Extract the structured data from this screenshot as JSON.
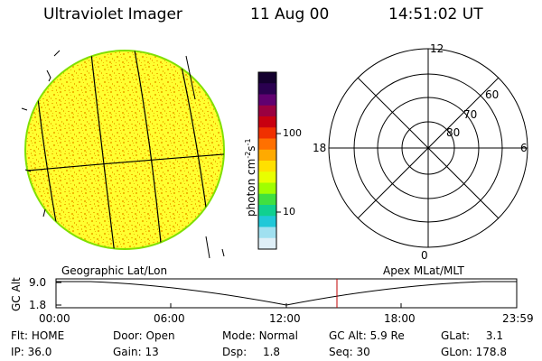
{
  "header": {
    "title": "Ultraviolet Imager",
    "date": "11 Aug 00",
    "time": "14:51:02 UT"
  },
  "colorbar": {
    "unit": "photon cm",
    "unit_exp1": "-2",
    "unit_s": "s",
    "unit_exp2": "-1",
    "ticks": [
      "100",
      "10"
    ],
    "colors_top_to_bottom": [
      "#14002e",
      "#2a0050",
      "#600070",
      "#9a0040",
      "#c80010",
      "#f03000",
      "#ff7000",
      "#ffaa00",
      "#ffe000",
      "#e8ff00",
      "#a0ff00",
      "#40e040",
      "#10d090",
      "#20c8d8",
      "#a0e0f0",
      "#dfeff7"
    ]
  },
  "earth_panel": {
    "label": "Geographic Lat/Lon",
    "fill_primary": "#ffff30",
    "fill_speckle": "#f0b800",
    "rim_color": "#80e000"
  },
  "polar_panel": {
    "label": "Apex MLat/MLT",
    "mlt_labels": {
      "top": "12",
      "left": "18",
      "right": "6",
      "bottom": "0"
    },
    "lat_labels": [
      "60",
      "70",
      "80"
    ]
  },
  "altitude_plot": {
    "ylabel": "GC Alt",
    "y_ticks": [
      "9.0",
      "1.8"
    ],
    "x_ticks": [
      "00:00",
      "06:00",
      "12:00",
      "18:00",
      "23:59"
    ],
    "marker_color": "#c00000"
  },
  "info": {
    "flt": {
      "label": "Flt:",
      "value": "HOME"
    },
    "ip": {
      "label": "IP:",
      "value": "36.0"
    },
    "door": {
      "label": "Door:",
      "value": "Open"
    },
    "gain": {
      "label": "Gain:",
      "value": "13"
    },
    "mode": {
      "label": "Mode:",
      "value": "Normal"
    },
    "dsp": {
      "label": "Dsp:",
      "value": "1.8"
    },
    "gcalt": {
      "label": "GC Alt:",
      "value": "5.9 Re"
    },
    "seq": {
      "label": "Seq:",
      "value": "30"
    },
    "glat": {
      "label": "GLat:",
      "value": "3.1"
    },
    "glon": {
      "label": "GLon:",
      "value": "178.8"
    }
  }
}
